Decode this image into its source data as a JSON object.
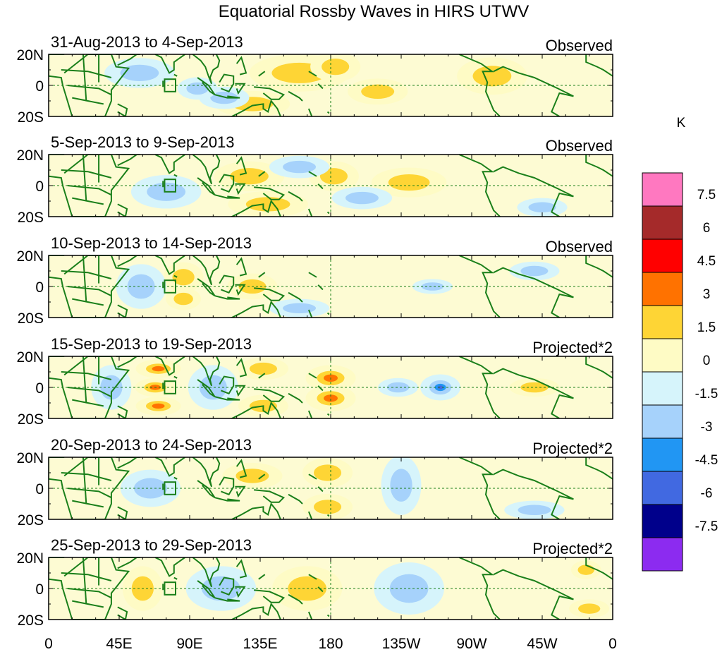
{
  "title": "Equatorial Rossby Waves in HIRS UTWV",
  "colors": {
    "land": "#1a7f1a",
    "panel_bg": "#fdfbd3",
    "frame": "#000000"
  },
  "panels": [
    {
      "date_range": "31-Aug-2013 to 4-Sep-2013",
      "status": "Observed",
      "anomalies": [
        {
          "lon": 160,
          "lat": 8,
          "value": 2.0,
          "sx": 20,
          "sy": 10
        },
        {
          "lon": 130,
          "lat": -12,
          "value": 2.0,
          "sx": 15,
          "sy": 7
        },
        {
          "lon": 183,
          "lat": 12,
          "value": 1.8,
          "sx": 10,
          "sy": 8
        },
        {
          "lon": 210,
          "lat": -4,
          "value": 1.6,
          "sx": 12,
          "sy": 7
        },
        {
          "lon": 283,
          "lat": 6,
          "value": 1.8,
          "sx": 14,
          "sy": 10
        },
        {
          "lon": 112,
          "lat": -8,
          "value": -1.8,
          "sx": 10,
          "sy": 6
        },
        {
          "lon": 58,
          "lat": 8,
          "value": -1.7,
          "sx": 14,
          "sy": 8
        },
        {
          "lon": 95,
          "lat": -2,
          "value": -1.6,
          "sx": 8,
          "sy": 6
        }
      ]
    },
    {
      "date_range": "5-Sep-2013 to 9-Sep-2013",
      "status": "Observed",
      "anomalies": [
        {
          "lon": 128,
          "lat": 6,
          "value": 2.0,
          "sx": 14,
          "sy": 8
        },
        {
          "lon": 140,
          "lat": -12,
          "value": 1.9,
          "sx": 16,
          "sy": 7
        },
        {
          "lon": 182,
          "lat": 6,
          "value": 1.6,
          "sx": 10,
          "sy": 8
        },
        {
          "lon": 230,
          "lat": 2,
          "value": 2.0,
          "sx": 15,
          "sy": 8
        },
        {
          "lon": 75,
          "lat": -4,
          "value": -1.9,
          "sx": 14,
          "sy": 9
        },
        {
          "lon": 160,
          "lat": 12,
          "value": -1.7,
          "sx": 12,
          "sy": 6
        },
        {
          "lon": 200,
          "lat": -8,
          "value": -1.6,
          "sx": 12,
          "sy": 6
        },
        {
          "lon": 315,
          "lat": -14,
          "value": -1.6,
          "sx": 10,
          "sy": 5
        }
      ]
    },
    {
      "date_range": "10-Sep-2013 to 14-Sep-2013",
      "status": "Observed",
      "anomalies": [
        {
          "lon": 86,
          "lat": 6,
          "value": 1.7,
          "sx": 8,
          "sy": 8
        },
        {
          "lon": 86,
          "lat": -8,
          "value": 1.6,
          "sx": 7,
          "sy": 6
        },
        {
          "lon": 130,
          "lat": 0,
          "value": 1.7,
          "sx": 10,
          "sy": 7
        },
        {
          "lon": 59,
          "lat": 0,
          "value": -1.8,
          "sx": 10,
          "sy": 12
        },
        {
          "lon": 245,
          "lat": 0,
          "value": -1.6,
          "sx": 8,
          "sy": 4
        },
        {
          "lon": 310,
          "lat": 10,
          "value": -1.6,
          "sx": 10,
          "sy": 5
        },
        {
          "lon": 160,
          "lat": -14,
          "value": -1.6,
          "sx": 12,
          "sy": 5
        }
      ]
    },
    {
      "date_range": "15-Sep-2013 to 19-Sep-2013",
      "status": "Projected*2",
      "anomalies": [
        {
          "lon": 70,
          "lat": 12,
          "value": 3.2,
          "sx": 9,
          "sy": 5
        },
        {
          "lon": 68,
          "lat": 0,
          "value": 3.8,
          "sx": 8,
          "sy": 5
        },
        {
          "lon": 70,
          "lat": -12,
          "value": 3.2,
          "sx": 9,
          "sy": 5
        },
        {
          "lon": 180,
          "lat": 6,
          "value": 3.6,
          "sx": 10,
          "sy": 7
        },
        {
          "lon": 180,
          "lat": -7,
          "value": 3.6,
          "sx": 10,
          "sy": 7
        },
        {
          "lon": 137,
          "lat": 12,
          "value": 1.9,
          "sx": 10,
          "sy": 6
        },
        {
          "lon": 137,
          "lat": -12,
          "value": 1.9,
          "sx": 10,
          "sy": 6
        },
        {
          "lon": 310,
          "lat": 0,
          "value": 1.8,
          "sx": 10,
          "sy": 5
        },
        {
          "lon": 250,
          "lat": 0,
          "value": -5.0,
          "sx": 8,
          "sy": 7
        },
        {
          "lon": 223,
          "lat": 0,
          "value": -1.8,
          "sx": 8,
          "sy": 5
        },
        {
          "lon": 105,
          "lat": 0,
          "value": -1.8,
          "sx": 10,
          "sy": 12
        },
        {
          "lon": 40,
          "lat": 0,
          "value": -1.6,
          "sx": 8,
          "sy": 12
        }
      ]
    },
    {
      "date_range": "20-Sep-2013 to 24-Sep-2013",
      "status": "Projected*2",
      "anomalies": [
        {
          "lon": 178,
          "lat": 10,
          "value": 2.0,
          "sx": 10,
          "sy": 8
        },
        {
          "lon": 178,
          "lat": -12,
          "value": 1.8,
          "sx": 10,
          "sy": 7
        },
        {
          "lon": 130,
          "lat": 8,
          "value": 1.7,
          "sx": 12,
          "sy": 7
        },
        {
          "lon": 225,
          "lat": 2,
          "value": -1.8,
          "sx": 8,
          "sy": 16
        },
        {
          "lon": 65,
          "lat": 0,
          "value": -1.6,
          "sx": 12,
          "sy": 10
        },
        {
          "lon": 310,
          "lat": -14,
          "value": -1.6,
          "sx": 12,
          "sy": 5
        }
      ]
    },
    {
      "date_range": "25-Sep-2013 to 29-Sep-2013",
      "status": "Projected*2",
      "anomalies": [
        {
          "lon": 343,
          "lat": 12,
          "value": 1.8,
          "sx": 6,
          "sy": 5
        },
        {
          "lon": 345,
          "lat": -13,
          "value": 1.8,
          "sx": 8,
          "sy": 5
        },
        {
          "lon": 60,
          "lat": 0,
          "value": 1.6,
          "sx": 8,
          "sy": 12
        },
        {
          "lon": 165,
          "lat": 0,
          "value": 1.6,
          "sx": 14,
          "sy": 12
        },
        {
          "lon": 230,
          "lat": 0,
          "value": -1.7,
          "sx": 14,
          "sy": 14
        },
        {
          "lon": 110,
          "lat": 0,
          "value": -1.6,
          "sx": 14,
          "sy": 12
        }
      ]
    }
  ],
  "lat_labels": [
    "20N",
    "0",
    "20S"
  ],
  "lon_labels": [
    "0",
    "45E",
    "90E",
    "135E",
    "180",
    "135W",
    "90W",
    "45W",
    "0"
  ],
  "colorbar": {
    "unit": "K",
    "bins": [
      {
        "color": "#ff78c0"
      },
      {
        "color": "#a52a2a"
      },
      {
        "color": "#ff0000"
      },
      {
        "color": "#ff7200"
      },
      {
        "color": "#fed535"
      },
      {
        "color": "#fefbc5"
      },
      {
        "color": "#d6f4fb"
      },
      {
        "color": "#a6d2fb"
      },
      {
        "color": "#2196f3"
      },
      {
        "color": "#4169e1"
      },
      {
        "color": "#00008b"
      },
      {
        "color": "#8c2bf0"
      }
    ],
    "tick_labels": [
      "7.5",
      "6",
      "4.5",
      "3",
      "1.5",
      "0",
      "-1.5",
      "-3",
      "-4.5",
      "-6",
      "-7.5"
    ]
  }
}
